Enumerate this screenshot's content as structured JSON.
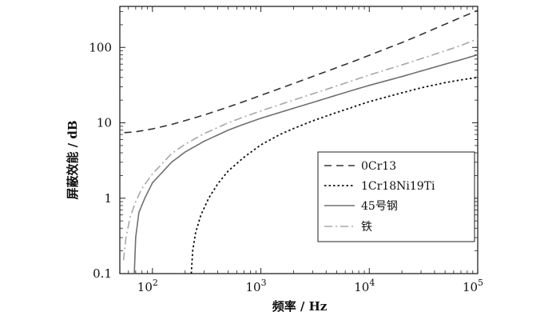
{
  "chart_data": {
    "type": "line",
    "xlabel": "频率 / Hz",
    "ylabel": "屏蔽效能 / dB",
    "x_scale": "log",
    "y_scale": "log",
    "xlim": [
      50,
      100000
    ],
    "ylim": [
      0.1,
      350
    ],
    "x_ticks": [
      {
        "value": 100,
        "base": "10",
        "exp": "2"
      },
      {
        "value": 1000,
        "base": "10",
        "exp": "3"
      },
      {
        "value": 10000,
        "base": "10",
        "exp": "4"
      },
      {
        "value": 100000,
        "base": "10",
        "exp": "5"
      }
    ],
    "y_ticks": [
      {
        "value": 0.1,
        "label": "0.1"
      },
      {
        "value": 1,
        "label": "1"
      },
      {
        "value": 10,
        "label": "10"
      },
      {
        "value": 100,
        "label": "100"
      }
    ],
    "grid": false,
    "legend_position": "lower-right",
    "series": [
      {
        "name": "0Cr13",
        "style": "dashed",
        "color": "#333333",
        "points": [
          [
            55,
            7.4
          ],
          [
            70,
            7.6
          ],
          [
            100,
            8.3
          ],
          [
            150,
            9.5
          ],
          [
            200,
            10.7
          ],
          [
            300,
            12.7
          ],
          [
            500,
            16.2
          ],
          [
            700,
            19.2
          ],
          [
            1000,
            23.1
          ],
          [
            2000,
            33.2
          ],
          [
            3000,
            41.1
          ],
          [
            5000,
            53.9
          ],
          [
            7000,
            64.5
          ],
          [
            10000,
            78.6
          ],
          [
            20000,
            116
          ],
          [
            30000,
            148
          ],
          [
            50000,
            203
          ],
          [
            70000,
            250
          ],
          [
            100000,
            310
          ]
        ]
      },
      {
        "name": "1Cr18Ni19Ti",
        "style": "dotted",
        "color": "#111111",
        "points": [
          [
            228,
            0.1
          ],
          [
            235,
            0.2
          ],
          [
            250,
            0.35
          ],
          [
            280,
            0.6
          ],
          [
            330,
            1.0
          ],
          [
            400,
            1.55
          ],
          [
            500,
            2.3
          ],
          [
            700,
            3.5
          ],
          [
            1000,
            5.1
          ],
          [
            1500,
            7.0
          ],
          [
            2000,
            8.4
          ],
          [
            3000,
            10.6
          ],
          [
            5000,
            13.7
          ],
          [
            7000,
            16.1
          ],
          [
            10000,
            19.1
          ],
          [
            20000,
            25.0
          ],
          [
            30000,
            29.1
          ],
          [
            50000,
            34.1
          ],
          [
            70000,
            37.1
          ],
          [
            100000,
            40.0
          ]
        ]
      },
      {
        "name": "45号钢",
        "style": "solid",
        "color": "#707070",
        "points": [
          [
            68,
            0.1
          ],
          [
            70,
            0.3
          ],
          [
            75,
            0.65
          ],
          [
            85,
            1.0
          ],
          [
            100,
            1.6
          ],
          [
            150,
            3.0
          ],
          [
            200,
            4.1
          ],
          [
            300,
            5.7
          ],
          [
            500,
            8.0
          ],
          [
            700,
            9.6
          ],
          [
            1000,
            11.5
          ],
          [
            2000,
            15.6
          ],
          [
            3000,
            18.6
          ],
          [
            5000,
            23.3
          ],
          [
            7000,
            27.0
          ],
          [
            10000,
            31.4
          ],
          [
            20000,
            41.1
          ],
          [
            30000,
            48.6
          ],
          [
            50000,
            60.0
          ],
          [
            70000,
            68.6
          ],
          [
            100000,
            80.0
          ]
        ]
      },
      {
        "name": "铁",
        "style": "dashdot",
        "color": "#a8a8a8",
        "points": [
          [
            54,
            0.15
          ],
          [
            57,
            0.3
          ],
          [
            62,
            0.55
          ],
          [
            70,
            0.9
          ],
          [
            80,
            1.35
          ],
          [
            100,
            2.1
          ],
          [
            150,
            3.9
          ],
          [
            200,
            5.2
          ],
          [
            300,
            7.2
          ],
          [
            500,
            10.0
          ],
          [
            700,
            12.0
          ],
          [
            1000,
            14.4
          ],
          [
            2000,
            20.0
          ],
          [
            3000,
            24.2
          ],
          [
            5000,
            30.8
          ],
          [
            7000,
            36.2
          ],
          [
            10000,
            43.1
          ],
          [
            20000,
            58.6
          ],
          [
            30000,
            70.8
          ],
          [
            50000,
            90.0
          ],
          [
            70000,
            106
          ],
          [
            100000,
            130
          ]
        ]
      }
    ]
  }
}
